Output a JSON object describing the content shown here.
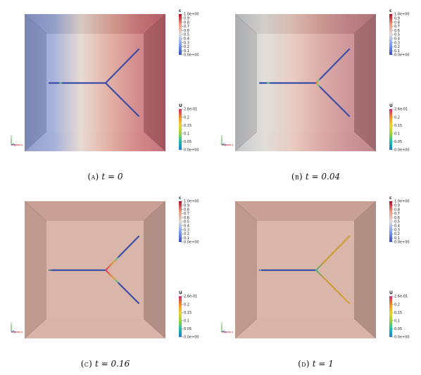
{
  "figure": {
    "panels": [
      {
        "id": "a",
        "label": "(a)",
        "equation": "t = 0",
        "scene": {
          "background": "gradient-blue-red",
          "network_fronts": [
            0.2,
            0.0,
            0.0
          ]
        }
      },
      {
        "id": "b",
        "label": "(b)",
        "equation": "t = 0.04",
        "scene": {
          "background": "gradient-gray-red",
          "network_fronts": [
            0.15,
            0.08,
            0.08
          ]
        }
      },
      {
        "id": "c",
        "label": "(c)",
        "equation": "t = 0.16",
        "scene": {
          "background": "uniform-tan",
          "network_fronts": [
            0.0,
            0.35,
            0.35
          ]
        }
      },
      {
        "id": "d",
        "label": "(d)",
        "equation": "t = 1",
        "scene": {
          "background": "uniform-tan",
          "network_fronts": [
            0.0,
            1.0,
            1.0
          ]
        }
      }
    ],
    "colorbar_c": {
      "title": "c",
      "ticks": [
        "1.0e+00",
        "0.9",
        "0.8",
        "0.7",
        "0.6",
        "0.5",
        "0.4",
        "0.3",
        "0.2",
        "0.1",
        "0.0e+00"
      ],
      "colors": [
        "#3b4cc0",
        "#7b9ff9",
        "#dddcdc",
        "#f49a7b",
        "#b40426"
      ]
    },
    "colorbar_u": {
      "title": "U",
      "ticks": [
        "2.6e-01",
        "0.2",
        "0.15",
        "0.1",
        "0.05",
        "0.0e+00"
      ],
      "colors": [
        "#1f78d6",
        "#18c0a8",
        "#9ad23a",
        "#f0d22a",
        "#f28c28",
        "#d6246e"
      ]
    },
    "axes_triad": {
      "x": "x",
      "y": "y",
      "z": "z"
    }
  }
}
